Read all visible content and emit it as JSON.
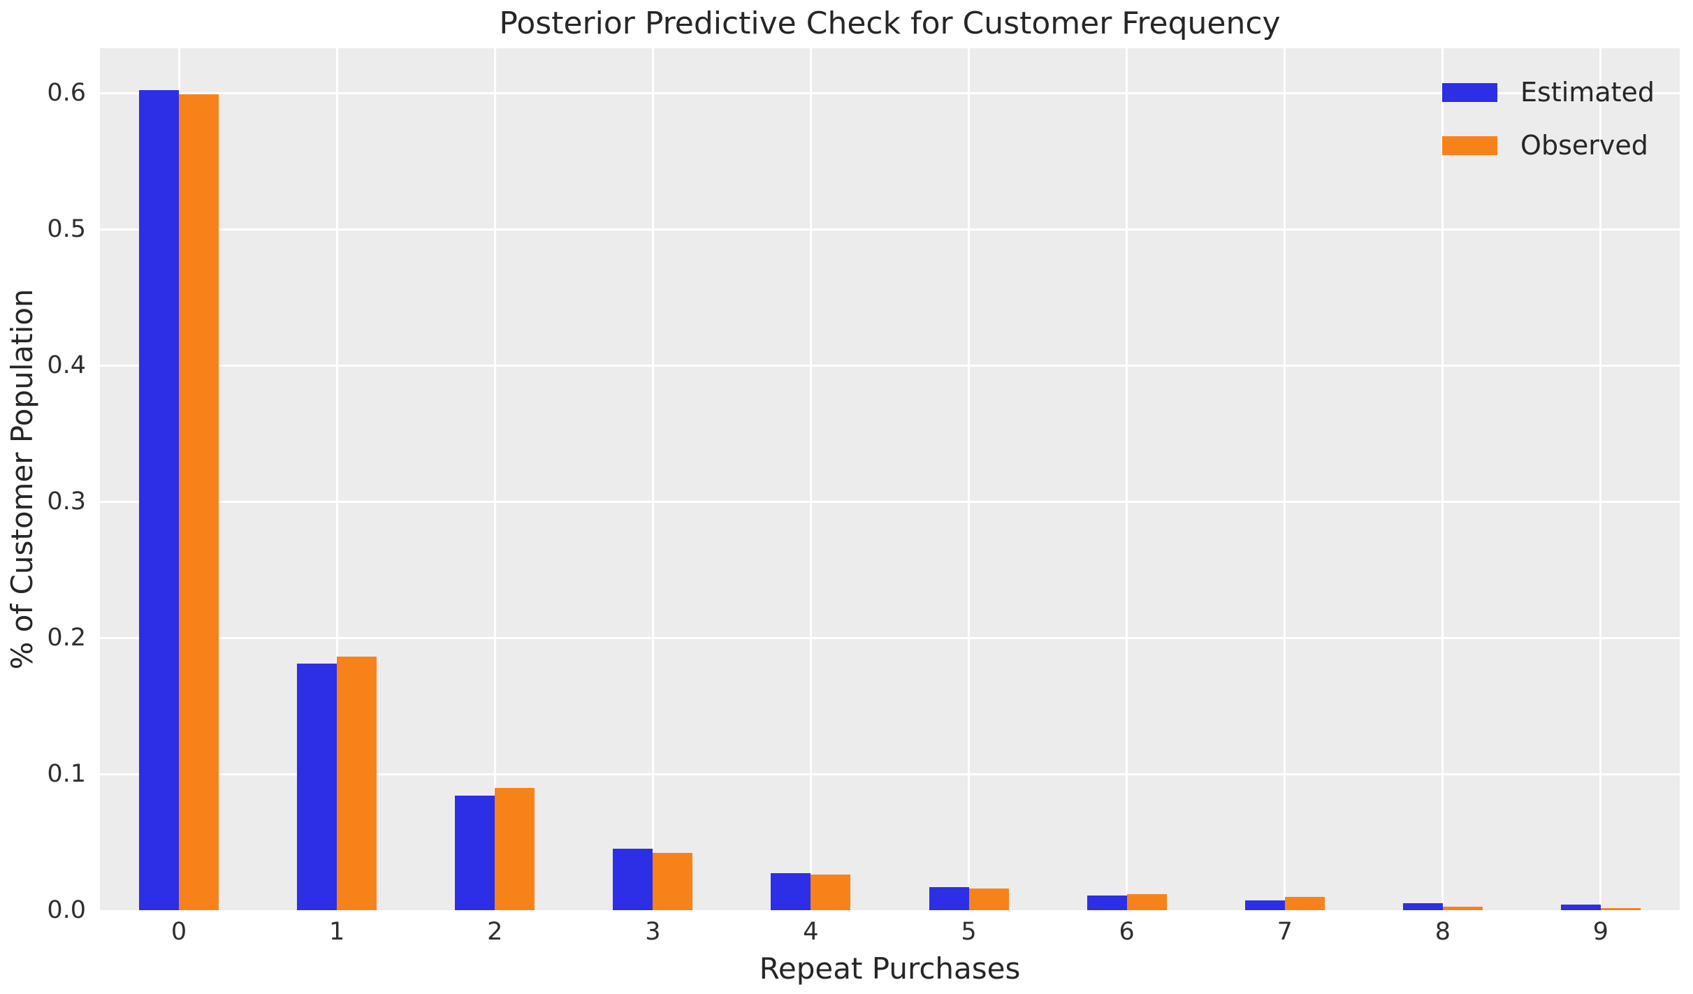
{
  "chart_data": {
    "type": "bar",
    "title": "Posterior Predictive Check for Customer Frequency",
    "xlabel": "Repeat Purchases",
    "ylabel": "% of Customer Population",
    "categories": [
      "0",
      "1",
      "2",
      "3",
      "4",
      "5",
      "6",
      "7",
      "8",
      "9"
    ],
    "series": [
      {
        "name": "Estimated",
        "color": "#2d2fe6",
        "values": [
          0.602,
          0.181,
          0.084,
          0.045,
          0.027,
          0.017,
          0.011,
          0.007,
          0.005,
          0.004
        ]
      },
      {
        "name": "Observed",
        "color": "#f8821a",
        "values": [
          0.599,
          0.186,
          0.09,
          0.042,
          0.026,
          0.016,
          0.012,
          0.01,
          0.0025,
          0.0015
        ]
      }
    ],
    "ytick_values": [
      0.0,
      0.1,
      0.2,
      0.3,
      0.4,
      0.5,
      0.6
    ],
    "ytick_labels": [
      "0.0",
      "0.1",
      "0.2",
      "0.3",
      "0.4",
      "0.5",
      "0.6"
    ],
    "ylim": [
      0,
      0.633
    ],
    "grid": true,
    "legend_position": "upper right",
    "plot_bg_color": "#ececec",
    "grid_color": "#ffffff",
    "text_color": "#262626",
    "bar_width_fraction": 0.0252
  }
}
